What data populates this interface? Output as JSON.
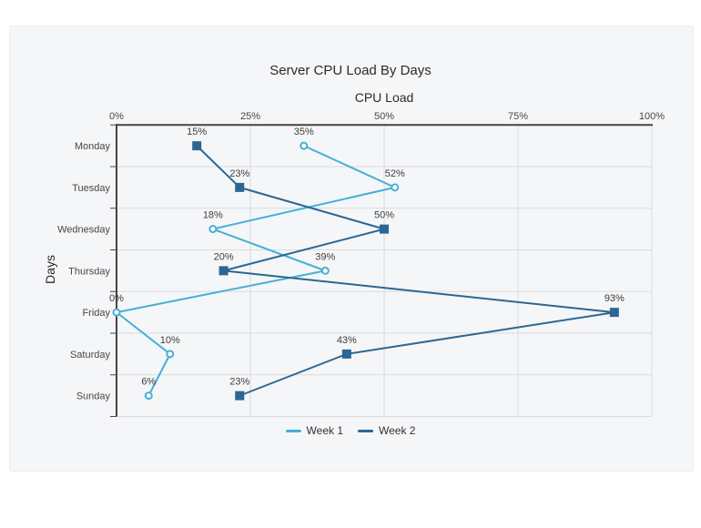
{
  "chart_data": {
    "type": "line",
    "orientation": "rotated",
    "title": "Server CPU Load By Days",
    "argument_axis_title": "CPU Load",
    "value_axis_title": "Days",
    "categories": [
      "Monday",
      "Tuesday",
      "Wednesday",
      "Thursday",
      "Friday",
      "Saturday",
      "Sunday"
    ],
    "x_ticks": [
      {
        "value": 0,
        "label": "0%"
      },
      {
        "value": 25,
        "label": "25%"
      },
      {
        "value": 50,
        "label": "50%"
      },
      {
        "value": 75,
        "label": "75%"
      },
      {
        "value": 100,
        "label": "100%"
      }
    ],
    "xlim": [
      0,
      100
    ],
    "grid": true,
    "legend_position": "bottom",
    "point_label_suffix": "%",
    "series": [
      {
        "name": "Week 1",
        "color": "#45b0d6",
        "marker": "hollow-circle",
        "values": [
          35,
          52,
          18,
          39,
          0,
          10,
          6
        ]
      },
      {
        "name": "Week 2",
        "color": "#2b6794",
        "marker": "filled-square",
        "values": [
          15,
          23,
          50,
          20,
          93,
          43,
          23
        ]
      }
    ]
  },
  "colors": {
    "panel_background": "#f5f6f8",
    "axis": "#454545",
    "grid": "#d9dbde",
    "tick_text": "#474747",
    "point_label_text": "#3d3d3d",
    "title_text": "#2b2b2b",
    "marker_inner_fill": "#ffffff"
  }
}
